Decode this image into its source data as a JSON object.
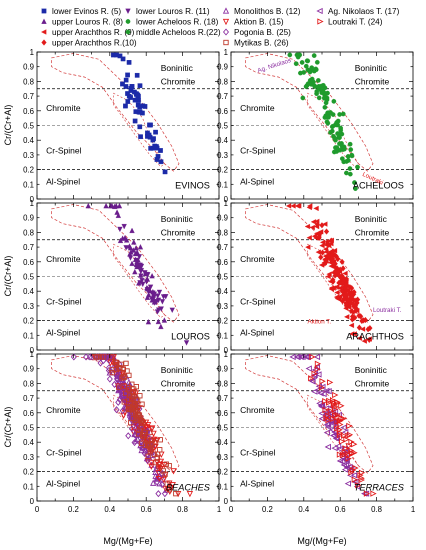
{
  "legend": {
    "entries": [
      {
        "label": "lower Evinos R. (5)",
        "color": "#1c2aa8",
        "marker": "square-filled"
      },
      {
        "label": "upper Louros R. (8)",
        "color": "#6a1d8c",
        "marker": "triangle-up-filled"
      },
      {
        "label": "upper Arachthos R. (9)",
        "color": "#e21a1a",
        "marker": "triangle-left-filled"
      },
      {
        "label": "upper Arachthos R.(10)",
        "color": "#e21a1a",
        "marker": "diamond-filled"
      },
      {
        "label": "lower Louros R. (11)",
        "color": "#6a1d8c",
        "marker": "triangle-down-filled"
      },
      {
        "label": "lower Acheloos R. (18)",
        "color": "#1f9a2c",
        "marker": "circle-filled"
      },
      {
        "label": "middle Acheloos R.(22)",
        "color": "#1f9a2c",
        "marker": "hexagon-filled"
      },
      {
        "label": "Monolithos B. (12)",
        "color": "#8b2fa0",
        "marker": "triangle-up-open"
      },
      {
        "label": "Aktion B. (15)",
        "color": "#e21a1a",
        "marker": "triangle-down-open"
      },
      {
        "label": "Pogonia B. (25)",
        "color": "#8b2fa0",
        "marker": "diamond-open"
      },
      {
        "label": "Mytikas B. (26)",
        "color": "#c0392b",
        "marker": "square-open"
      },
      {
        "label": "Ag. Nikolaos T. (17)",
        "color": "#8b2fa0",
        "marker": "triangle-left-open"
      },
      {
        "label": "Loutraki T. (24)",
        "color": "#e21a1a",
        "marker": "triangle-right-open"
      }
    ]
  },
  "axes": {
    "ylabel": "Cr/(Cr+Al)",
    "xlabel": "Mg/(Mg+Fe)",
    "xticks": [
      "0",
      "0.2",
      "0.4",
      "0.6",
      "0.8",
      "1"
    ],
    "yticks": [
      "0",
      "0.1",
      "0.2",
      "0.3",
      "0.4",
      "0.5",
      "0.6",
      "0.7",
      "0.8",
      "0.9",
      "1"
    ]
  },
  "fields": {
    "boninitic": "Boninitic",
    "chromite_upper": "Chromite",
    "chromite": "Chromite",
    "cr_spinel": "Cr-Spinel",
    "al_spinel": "Al-Spinel"
  },
  "field_boundaries": [
    0.75,
    0.5,
    0.2
  ],
  "panels": [
    {
      "name": "EVINOS",
      "italic": false,
      "notes": []
    },
    {
      "name": "ACHELOOS",
      "italic": false,
      "notes": [
        {
          "text": "Ag. Nikolaos",
          "color": "#8b2fa0"
        },
        {
          "text": "Loutraki",
          "color": "#e21a1a"
        }
      ]
    },
    {
      "name": "LOUROS",
      "italic": false,
      "notes": []
    },
    {
      "name": "ARACHTHOS",
      "italic": false,
      "notes": [
        {
          "text": "Aktion T.",
          "color": "#e21a1a"
        },
        {
          "text": "Loutraki T.",
          "color": "#8b2fa0"
        }
      ]
    },
    {
      "name": "BEACHES",
      "italic": true,
      "notes": []
    },
    {
      "name": "TERRACES",
      "italic": true,
      "notes": []
    }
  ],
  "chart_data": [
    {
      "type": "scatter",
      "title": "EVINOS",
      "xlim": [
        0,
        1
      ],
      "ylim": [
        0,
        1
      ],
      "series": [
        {
          "name": "lower Evinos R. (5)",
          "color": "#1c2aa8",
          "marker": "square",
          "cluster": [
            [
              0.56,
              0.62,
              0.07,
              0.14,
              60
            ]
          ]
        }
      ]
    },
    {
      "type": "scatter",
      "title": "ACHELOOS",
      "xlim": [
        0,
        1
      ],
      "ylim": [
        0,
        1
      ],
      "series": [
        {
          "name": "lower Acheloos R. (18)",
          "color": "#1f9a2c",
          "marker": "circle",
          "cluster": [
            [
              0.56,
              0.52,
              0.07,
              0.14,
              75
            ]
          ]
        },
        {
          "name": "middle Acheloos R.(22)",
          "color": "#1f9a2c",
          "marker": "hexagon",
          "cluster": [
            [
              0.48,
              0.72,
              0.07,
              0.1,
              40
            ]
          ]
        }
      ]
    },
    {
      "type": "scatter",
      "title": "LOUROS",
      "xlim": [
        0,
        1
      ],
      "ylim": [
        0,
        1
      ],
      "series": [
        {
          "name": "upper Louros R. (8)",
          "color": "#6a1d8c",
          "marker": "triangle-up",
          "cluster": [
            [
              0.55,
              0.6,
              0.07,
              0.14,
              55
            ]
          ]
        },
        {
          "name": "lower Louros R. (11)",
          "color": "#6a1d8c",
          "marker": "triangle-down",
          "cluster": [
            [
              0.6,
              0.48,
              0.07,
              0.1,
              40
            ]
          ]
        }
      ]
    },
    {
      "type": "scatter",
      "title": "ARACHTHOS",
      "xlim": [
        0,
        1
      ],
      "ylim": [
        0,
        1
      ],
      "series": [
        {
          "name": "upper Arachthos R. (9)",
          "color": "#e21a1a",
          "marker": "triangle-left",
          "cluster": [
            [
              0.55,
              0.6,
              0.08,
              0.15,
              110
            ]
          ]
        },
        {
          "name": "upper Arachthos R.(10)",
          "color": "#e21a1a",
          "marker": "diamond",
          "cluster": [
            [
              0.62,
              0.45,
              0.07,
              0.12,
              90
            ]
          ]
        }
      ]
    },
    {
      "type": "scatter",
      "title": "BEACHES",
      "xlim": [
        0,
        1
      ],
      "ylim": [
        0,
        1
      ],
      "series": [
        {
          "name": "Monolithos B. (12)",
          "color": "#8b2fa0",
          "marker": "triangle-up-open",
          "cluster": [
            [
              0.52,
              0.62,
              0.08,
              0.16,
              120
            ]
          ]
        },
        {
          "name": "Aktion B. (15)",
          "color": "#e21a1a",
          "marker": "triangle-down-open",
          "cluster": [
            [
              0.58,
              0.5,
              0.09,
              0.16,
              110
            ]
          ]
        },
        {
          "name": "Pogonia B. (25)",
          "color": "#8b2fa0",
          "marker": "diamond-open",
          "cluster": [
            [
              0.5,
              0.66,
              0.08,
              0.15,
              110
            ]
          ]
        },
        {
          "name": "Mytikas B. (26)",
          "color": "#c0392b",
          "marker": "square-open",
          "cluster": [
            [
              0.55,
              0.58,
              0.08,
              0.15,
              110
            ]
          ]
        }
      ]
    },
    {
      "type": "scatter",
      "title": "TERRACES",
      "xlim": [
        0,
        1
      ],
      "ylim": [
        0,
        1
      ],
      "series": [
        {
          "name": "Ag. Nikolaos T. (17)",
          "color": "#8b2fa0",
          "marker": "triangle-left-open",
          "cluster": [
            [
              0.55,
              0.55,
              0.07,
              0.15,
              90
            ]
          ]
        },
        {
          "name": "Loutraki T. (24)",
          "color": "#e21a1a",
          "marker": "triangle-right-open",
          "cluster": [
            [
              0.6,
              0.48,
              0.07,
              0.14,
              70
            ]
          ]
        }
      ]
    }
  ]
}
